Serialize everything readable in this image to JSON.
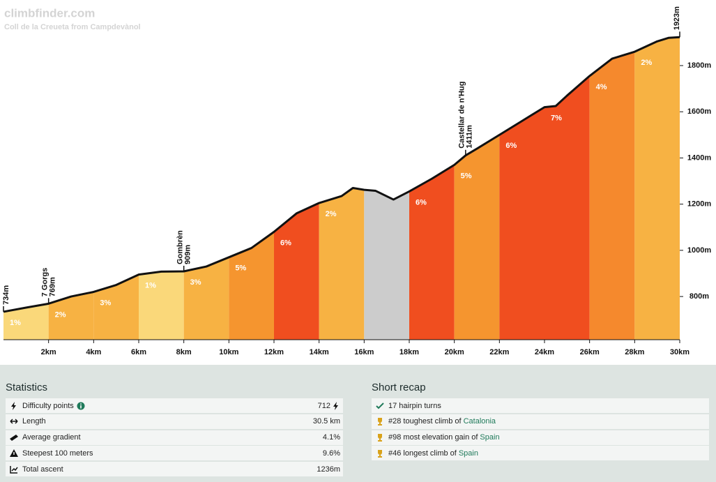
{
  "chart_data": {
    "type": "climb-profile",
    "title": "climbfinder.com",
    "subtitle": "Coll de la Creueta from Campdevànol",
    "x": [
      0,
      1,
      2,
      3,
      4,
      5,
      6,
      7,
      8,
      9,
      10,
      11,
      12,
      13,
      14,
      15,
      15.5,
      16,
      16.5,
      17.3,
      18,
      19,
      20,
      20.5,
      21,
      22,
      23,
      24,
      24.5,
      25,
      26,
      27,
      28,
      29,
      29.5,
      30
    ],
    "values": [
      734,
      752,
      769,
      800,
      820,
      850,
      895,
      908,
      909,
      930,
      970,
      1010,
      1080,
      1160,
      1205,
      1235,
      1270,
      1262,
      1258,
      1220,
      1255,
      1310,
      1370,
      1411,
      1440,
      1500,
      1560,
      1620,
      1625,
      1670,
      1755,
      1830,
      1860,
      1905,
      1920,
      1923
    ],
    "segments": {
      "bins": [
        0,
        2,
        4,
        6,
        8,
        10,
        12,
        14,
        16,
        18,
        20,
        22,
        24,
        26,
        28,
        30
      ],
      "values": [
        1,
        2,
        3,
        1,
        3,
        5,
        6,
        2,
        null,
        6,
        5,
        6,
        7,
        4,
        2
      ],
      "value_labels": [
        "1%",
        "2%",
        "3%",
        "1%",
        "3%",
        "5%",
        "6%",
        "2%",
        null,
        "6%",
        "5%",
        "6%",
        "7%",
        "4%",
        "2%"
      ],
      "colors": [
        "#fad87a",
        "#f7b243",
        "#f7b243",
        "#fad87a",
        "#f7b243",
        "#f5952f",
        "#f04e1f",
        "#f7b243",
        "#cccccc",
        "#f04e1f",
        "#f5952f",
        "#f04e1f",
        "#f04e1f",
        "#f5892d",
        "#f7b243"
      ]
    },
    "annotations": [
      {
        "x": 0,
        "y": 734,
        "label": "734m"
      },
      {
        "x": 2,
        "y": 769,
        "name": "7 Gorgs",
        "label": "769m"
      },
      {
        "x": 8,
        "y": 909,
        "name": "Gombrèn",
        "label": "909m"
      },
      {
        "x": 20.5,
        "y": 1411,
        "name": "Castellar de n'Hug",
        "label": "1411m"
      },
      {
        "x": 30,
        "y": 1923,
        "label": "1923m"
      }
    ],
    "xlim": [
      0,
      30
    ],
    "xticks": [
      {
        "value": 2,
        "label": "2km"
      },
      {
        "value": 4,
        "label": "4km"
      },
      {
        "value": 6,
        "label": "6km"
      },
      {
        "value": 8,
        "label": "8km"
      },
      {
        "value": 10,
        "label": "10km"
      },
      {
        "value": 12,
        "label": "12km"
      },
      {
        "value": 14,
        "label": "14km"
      },
      {
        "value": 16,
        "label": "16km"
      },
      {
        "value": 18,
        "label": "18km"
      },
      {
        "value": 20,
        "label": "20km"
      },
      {
        "value": 22,
        "label": "22km"
      },
      {
        "value": 24,
        "label": "24km"
      },
      {
        "value": 26,
        "label": "26km"
      },
      {
        "value": 28,
        "label": "28km"
      },
      {
        "value": 30,
        "label": "30km"
      }
    ],
    "ylim": [
      613,
      2084
    ],
    "yticks": [
      {
        "value": 800,
        "label": "800m"
      },
      {
        "value": 1000,
        "label": "1000m"
      },
      {
        "value": 1200,
        "label": "1200m"
      },
      {
        "value": 1400,
        "label": "1400m"
      },
      {
        "value": 1600,
        "label": "1600m"
      },
      {
        "value": 1800,
        "label": "1800m"
      }
    ]
  },
  "statistics": {
    "title": "Statistics",
    "rows": [
      {
        "label": "Difficulty points",
        "value": "712"
      },
      {
        "label": "Length",
        "value": "30.5 km"
      },
      {
        "label": "Average gradient",
        "value": "4.1%"
      },
      {
        "label": "Steepest 100 meters",
        "value": "9.6%"
      },
      {
        "label": "Total ascent",
        "value": "1236m"
      }
    ]
  },
  "recap": {
    "title": "Short recap",
    "items": [
      {
        "text": "17 hairpin turns"
      },
      {
        "text": "#28 toughest climb of",
        "link": "Catalonia"
      },
      {
        "text": "#98 most elevation gain of",
        "link": "Spain"
      },
      {
        "text": "#46 longest climb of",
        "link": "Spain"
      }
    ]
  }
}
